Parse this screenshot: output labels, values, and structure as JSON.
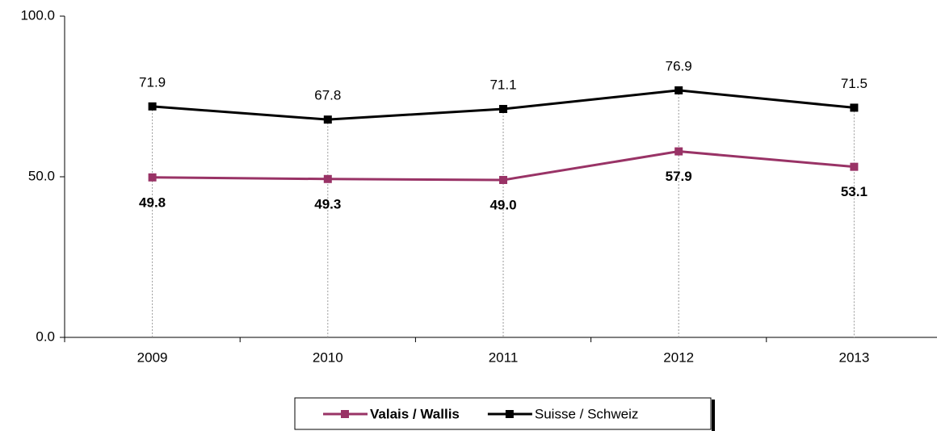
{
  "chart_data": {
    "type": "line",
    "categories": [
      "2009",
      "2010",
      "2011",
      "2012",
      "2013"
    ],
    "series": [
      {
        "name": "Valais / Wallis",
        "color": "#993366",
        "values": [
          49.8,
          49.3,
          49.0,
          57.9,
          53.1
        ],
        "value_labels": [
          "49.8",
          "49.3",
          "49.0",
          "57.9",
          "53.1"
        ]
      },
      {
        "name": "Suisse / Schweiz",
        "color": "#000000",
        "values": [
          71.9,
          67.8,
          71.1,
          76.9,
          71.5
        ],
        "value_labels": [
          "71.9",
          "67.8",
          "71.1",
          "76.9",
          "71.5"
        ]
      }
    ],
    "ylim": [
      0,
      100
    ],
    "yticks": [
      {
        "value": 0,
        "label": "0.0"
      },
      {
        "value": 50,
        "label": "50.0"
      },
      {
        "value": 100,
        "label": "100.0"
      }
    ],
    "legend": "bottom"
  }
}
